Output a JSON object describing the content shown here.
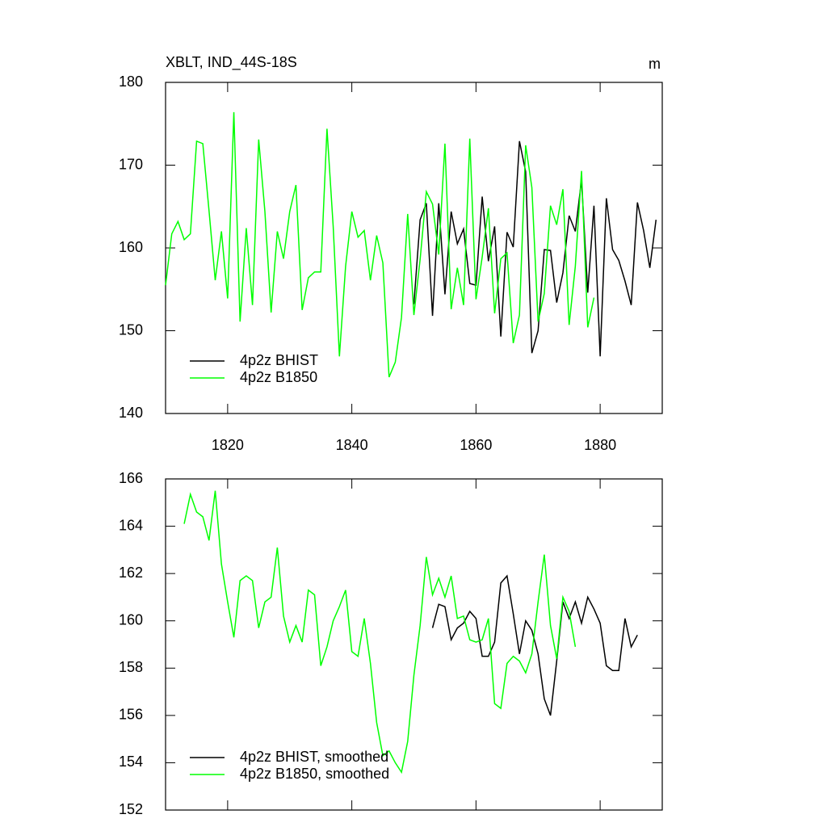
{
  "chart_data": [
    {
      "type": "line",
      "title": "XBLT, IND_44S-18S",
      "unit": "m",
      "legend": "lower left",
      "xlim": [
        1810,
        1890
      ],
      "xticks": [
        1820,
        1840,
        1860,
        1880
      ],
      "ylim": [
        140,
        180
      ],
      "yticks": [
        140,
        150,
        160,
        170,
        180
      ],
      "series": [
        {
          "name": "4p2z BHIST",
          "color": "#000000",
          "x": [
            1850,
            1851,
            1852,
            1853,
            1854,
            1855,
            1856,
            1857,
            1858,
            1859,
            1860,
            1861,
            1862,
            1863,
            1864,
            1865,
            1866,
            1867,
            1868,
            1869,
            1870,
            1871,
            1872,
            1873,
            1874,
            1875,
            1876,
            1877,
            1878,
            1879,
            1880,
            1881,
            1882,
            1883,
            1884,
            1885,
            1886,
            1887,
            1888,
            1889
          ],
          "values": [
            153.2,
            163.4,
            165.4,
            151.8,
            165.4,
            154.4,
            164.4,
            160.5,
            162.3,
            155.7,
            155.5,
            166.2,
            158.4,
            162.6,
            149.3,
            161.9,
            160.1,
            172.9,
            169.2,
            147.3,
            150.0,
            159.8,
            159.7,
            153.4,
            157.0,
            163.9,
            162.0,
            168.2,
            154.6,
            165.1,
            146.9,
            166.0,
            159.8,
            158.5,
            156.0,
            153.1,
            165.5,
            162.1,
            157.6,
            163.4
          ]
        },
        {
          "name": "4p2z B1850",
          "color": "#00ff00",
          "x": [
            1810,
            1811,
            1812,
            1813,
            1814,
            1815,
            1816,
            1817,
            1818,
            1819,
            1820,
            1821,
            1822,
            1823,
            1824,
            1825,
            1826,
            1827,
            1828,
            1829,
            1830,
            1831,
            1832,
            1833,
            1834,
            1835,
            1836,
            1837,
            1838,
            1839,
            1840,
            1841,
            1842,
            1843,
            1844,
            1845,
            1846,
            1847,
            1848,
            1849,
            1850,
            1851,
            1852,
            1853,
            1854,
            1855,
            1856,
            1857,
            1858,
            1859,
            1860,
            1861,
            1862,
            1863,
            1864,
            1865,
            1866,
            1867,
            1868,
            1869,
            1870,
            1871,
            1872,
            1873,
            1874,
            1875,
            1876,
            1877,
            1878,
            1879
          ],
          "values": [
            155.5,
            161.7,
            163.2,
            161.0,
            161.7,
            172.9,
            172.6,
            164.5,
            156.1,
            162.0,
            153.9,
            176.4,
            151.1,
            162.4,
            153.1,
            173.1,
            164.4,
            152.2,
            162.0,
            158.7,
            164.4,
            167.6,
            152.5,
            156.4,
            157.1,
            157.1,
            174.4,
            162.6,
            146.9,
            157.8,
            164.4,
            161.3,
            162.1,
            156.1,
            161.5,
            158.2,
            144.4,
            146.2,
            151.6,
            164.1,
            151.9,
            158.6,
            166.8,
            165.3,
            159.2,
            172.6,
            152.6,
            157.6,
            153.1,
            173.2,
            153.8,
            158.9,
            164.8,
            152.1,
            158.7,
            159.4,
            148.5,
            151.9,
            172.4,
            167.3,
            151.1,
            154.5,
            165.1,
            162.8,
            167.1,
            150.7,
            157.8,
            169.3,
            150.4,
            154.0
          ]
        }
      ]
    },
    {
      "type": "line",
      "legend": "lower left",
      "xlim": [
        1810,
        1890
      ],
      "xticks": [
        1820,
        1840,
        1860,
        1880
      ],
      "ylim": [
        152,
        166
      ],
      "yticks": [
        152,
        154,
        156,
        158,
        160,
        162,
        164,
        166
      ],
      "series": [
        {
          "name": "4p2z BHIST, smoothed",
          "color": "#000000",
          "x": [
            1853,
            1854,
            1855,
            1856,
            1857,
            1858,
            1859,
            1860,
            1861,
            1862,
            1863,
            1864,
            1865,
            1866,
            1867,
            1868,
            1869,
            1870,
            1871,
            1872,
            1873,
            1874,
            1875,
            1876,
            1877,
            1878,
            1879,
            1880,
            1881,
            1882,
            1883,
            1884,
            1885,
            1886
          ],
          "values": [
            159.7,
            160.7,
            160.6,
            159.2,
            159.7,
            159.9,
            160.4,
            160.1,
            158.5,
            158.5,
            159.1,
            161.6,
            161.9,
            160.3,
            158.6,
            160.0,
            159.6,
            158.6,
            156.7,
            156.0,
            158.3,
            160.8,
            160.1,
            160.8,
            159.9,
            161.0,
            160.5,
            159.9,
            158.1,
            157.9,
            157.9,
            160.1,
            158.9,
            159.4
          ]
        },
        {
          "name": "4p2z B1850, smoothed",
          "color": "#00ff00",
          "x": [
            1813,
            1814,
            1815,
            1816,
            1817,
            1818,
            1819,
            1820,
            1821,
            1822,
            1823,
            1824,
            1825,
            1826,
            1827,
            1828,
            1829,
            1830,
            1831,
            1832,
            1833,
            1834,
            1835,
            1836,
            1837,
            1838,
            1839,
            1840,
            1841,
            1842,
            1843,
            1844,
            1845,
            1846,
            1847,
            1848,
            1849,
            1850,
            1851,
            1852,
            1853,
            1854,
            1855,
            1856,
            1857,
            1858,
            1859,
            1860,
            1861,
            1862,
            1863,
            1864,
            1865,
            1866,
            1867,
            1868,
            1869,
            1870,
            1871,
            1872,
            1873,
            1874,
            1875,
            1876
          ],
          "values": [
            164.1,
            165.35,
            164.6,
            164.4,
            163.4,
            165.5,
            162.4,
            160.8,
            159.3,
            161.7,
            161.9,
            161.7,
            159.7,
            160.8,
            161.0,
            163.1,
            160.2,
            159.1,
            159.8,
            159.1,
            161.3,
            161.1,
            158.1,
            158.9,
            160.0,
            160.6,
            161.3,
            158.7,
            158.5,
            160.1,
            158.2,
            155.7,
            154.3,
            154.5,
            154.0,
            153.6,
            154.9,
            157.7,
            159.8,
            162.7,
            161.1,
            161.8,
            161.0,
            161.9,
            160.1,
            160.2,
            159.2,
            159.1,
            159.2,
            160.1,
            156.5,
            156.3,
            158.2,
            158.5,
            158.3,
            157.8,
            158.6,
            160.8,
            162.8,
            159.8,
            158.4,
            161.0,
            160.4,
            158.9
          ]
        }
      ]
    }
  ]
}
